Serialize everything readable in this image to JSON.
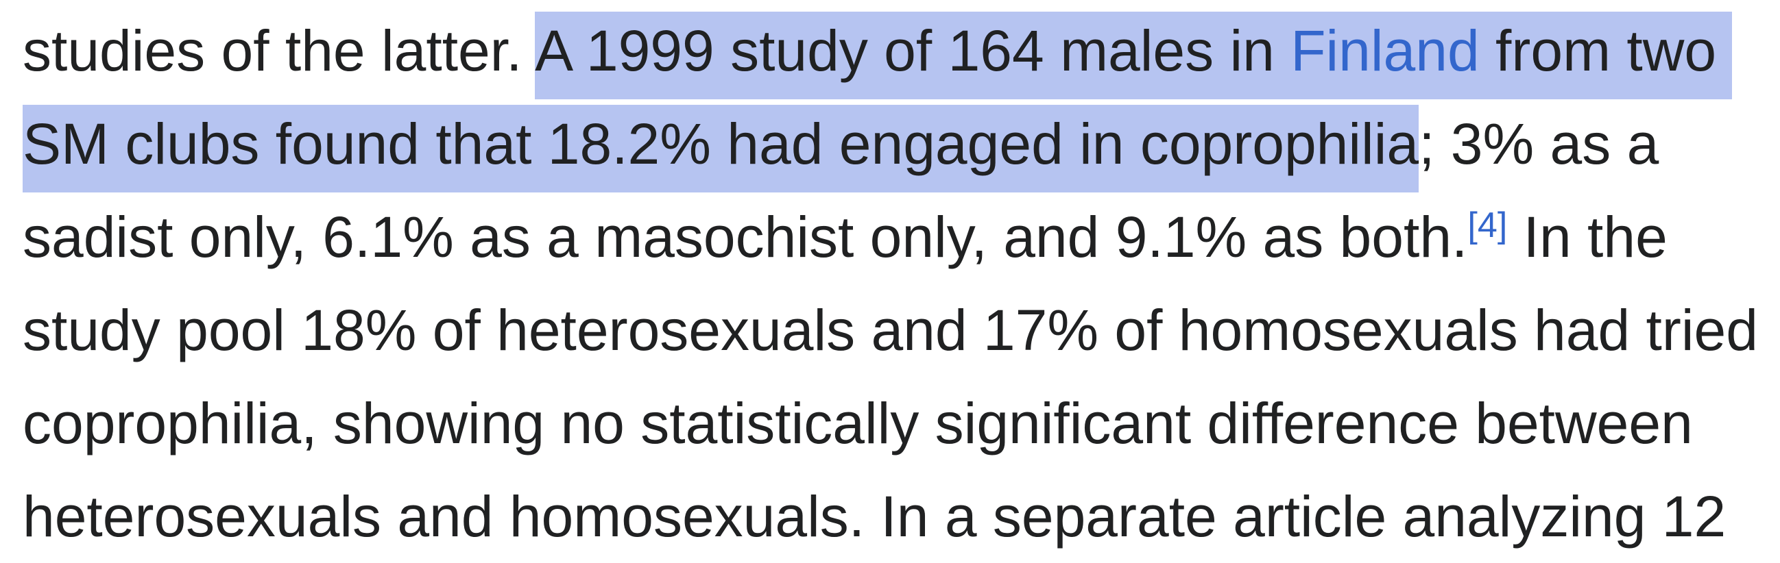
{
  "colors": {
    "background": "#ffffff",
    "text": "#202122",
    "link": "#3366cc",
    "selection": "#b6c4f1"
  },
  "paragraph": {
    "lines": [
      {
        "segments": [
          {
            "text": "studies of the latter. ",
            "highlight": false
          },
          {
            "text": "A 1999 study of 164 males in ",
            "highlight": true
          },
          {
            "text": "Finland",
            "highlight": true,
            "link": true,
            "name": "finland-link"
          },
          {
            "text": " from two ",
            "highlight": true
          }
        ]
      },
      {
        "segments": [
          {
            "text": "SM clubs found that 18.2% had engaged in coprophilia",
            "highlight": true
          },
          {
            "text": "; 3% as a",
            "highlight": false
          }
        ]
      },
      {
        "segments": [
          {
            "text": "sadist only, 6.1% as a masochist only, and 9.1% as both.",
            "highlight": false
          },
          {
            "text": "[4]",
            "highlight": false,
            "link": true,
            "sup": true,
            "name": "citation-4-link"
          },
          {
            "text": " In the",
            "highlight": false
          }
        ]
      },
      {
        "segments": [
          {
            "text": "study pool 18% of heterosexuals and 17% of homosexuals had tried",
            "highlight": false
          }
        ]
      },
      {
        "segments": [
          {
            "text": "coprophilia, showing no statistically significant difference between",
            "highlight": false
          }
        ]
      },
      {
        "segments": [
          {
            "text": "heterosexuals and homosexuals. In a separate article analyzing 12",
            "highlight": false
          }
        ]
      }
    ]
  }
}
